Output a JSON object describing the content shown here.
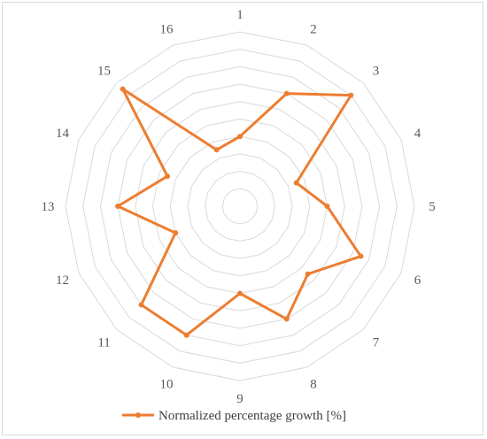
{
  "chart_data": {
    "type": "radar",
    "categories": [
      "1",
      "2",
      "3",
      "4",
      "5",
      "6",
      "7",
      "8",
      "9",
      "10",
      "11",
      "12",
      "13",
      "14",
      "15",
      "16"
    ],
    "series": [
      {
        "name": "Normalized percentage growth [%]",
        "values": [
          0.4,
          0.7,
          0.9,
          0.35,
          0.5,
          0.75,
          0.55,
          0.7,
          0.5,
          0.8,
          0.8,
          0.4,
          0.7,
          0.45,
          0.95,
          0.35
        ]
      }
    ],
    "rlim": [
      0,
      1
    ],
    "rings": 10,
    "grid": true,
    "legend_position": "bottom",
    "colors": {
      "series": "#ED7D31",
      "grid": "#d9d9d9",
      "labels": "#595959"
    }
  }
}
